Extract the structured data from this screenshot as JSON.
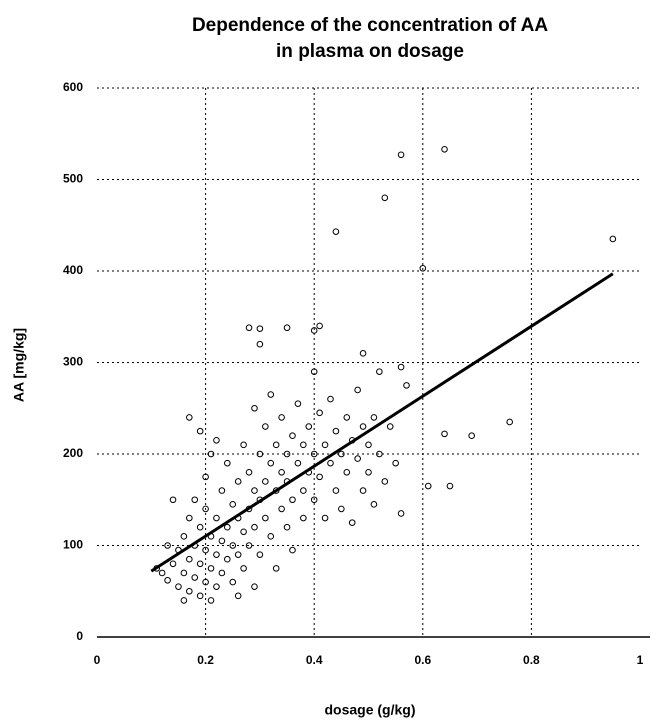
{
  "chart_data": {
    "type": "scatter",
    "title": [
      "Dependence of the concentration of AA",
      "in plasma on dosage"
    ],
    "xlabel": "dosage (g/kg)",
    "ylabel": "AA [mg/kg]",
    "xlim": [
      0,
      1
    ],
    "xticks": [
      0,
      0.2,
      0.4,
      0.6,
      0.8,
      1
    ],
    "ylim": [
      0,
      600
    ],
    "yticks": [
      0,
      100,
      200,
      300,
      400,
      500,
      600
    ],
    "grid": true,
    "color": "#000000",
    "series": [
      {
        "x": [
          0.12,
          0.13,
          0.14,
          0.15,
          0.15,
          0.16,
          0.16,
          0.17,
          0.17,
          0.17,
          0.18,
          0.18,
          0.18,
          0.19,
          0.19,
          0.19,
          0.2,
          0.2,
          0.2,
          0.2,
          0.21,
          0.21,
          0.21,
          0.22,
          0.22,
          0.22,
          0.23,
          0.23,
          0.23,
          0.24,
          0.24,
          0.24,
          0.25,
          0.25,
          0.25,
          0.26,
          0.26,
          0.26,
          0.27,
          0.27,
          0.27,
          0.28,
          0.28,
          0.28,
          0.29,
          0.29,
          0.29,
          0.3,
          0.3,
          0.3,
          0.31,
          0.31,
          0.31,
          0.32,
          0.32,
          0.32,
          0.33,
          0.33,
          0.33,
          0.34,
          0.34,
          0.34,
          0.35,
          0.35,
          0.35,
          0.36,
          0.36,
          0.36,
          0.37,
          0.37,
          0.38,
          0.38,
          0.38,
          0.39,
          0.39,
          0.4,
          0.4,
          0.4,
          0.41,
          0.41,
          0.42,
          0.42,
          0.43,
          0.43,
          0.44,
          0.44,
          0.45,
          0.45,
          0.46,
          0.46,
          0.47,
          0.47,
          0.48,
          0.48,
          0.49,
          0.49,
          0.5,
          0.5,
          0.51,
          0.51,
          0.52,
          0.53,
          0.54,
          0.55,
          0.14,
          0.13,
          0.11,
          0.17,
          0.19,
          0.22,
          0.16,
          0.21,
          0.26,
          0.29,
          0.53,
          0.56,
          0.64,
          0.44,
          0.6,
          0.95,
          0.76,
          0.69,
          0.64,
          0.65,
          0.61,
          0.56,
          0.57,
          0.56,
          0.52,
          0.49,
          0.41,
          0.4,
          0.35,
          0.28,
          0.3,
          0.3
        ],
        "values": [
          70,
          62,
          80,
          55,
          95,
          70,
          110,
          85,
          130,
          50,
          100,
          65,
          150,
          80,
          120,
          45,
          95,
          140,
          60,
          175,
          110,
          75,
          200,
          90,
          130,
          55,
          105,
          160,
          70,
          120,
          85,
          190,
          100,
          145,
          60,
          130,
          170,
          90,
          115,
          210,
          75,
          140,
          180,
          100,
          160,
          250,
          120,
          150,
          200,
          90,
          170,
          130,
          230,
          190,
          110,
          265,
          160,
          210,
          75,
          180,
          140,
          240,
          200,
          120,
          170,
          220,
          150,
          95,
          190,
          255,
          160,
          210,
          130,
          230,
          180,
          200,
          150,
          290,
          175,
          245,
          210,
          130,
          190,
          260,
          160,
          225,
          200,
          140,
          240,
          180,
          215,
          125,
          195,
          270,
          230,
          160,
          210,
          180,
          240,
          145,
          200,
          170,
          230,
          190,
          150,
          100,
          75,
          240,
          225,
          215,
          40,
          40,
          45,
          55,
          480,
          527,
          533,
          443,
          403,
          435,
          235,
          220,
          222,
          165,
          165,
          135,
          275,
          295,
          290,
          310,
          340,
          335,
          338,
          338,
          337,
          320
        ]
      },
      {
        "x": [
          0.1,
          0.95
        ],
        "values": [
          72,
          397
        ]
      }
    ]
  }
}
